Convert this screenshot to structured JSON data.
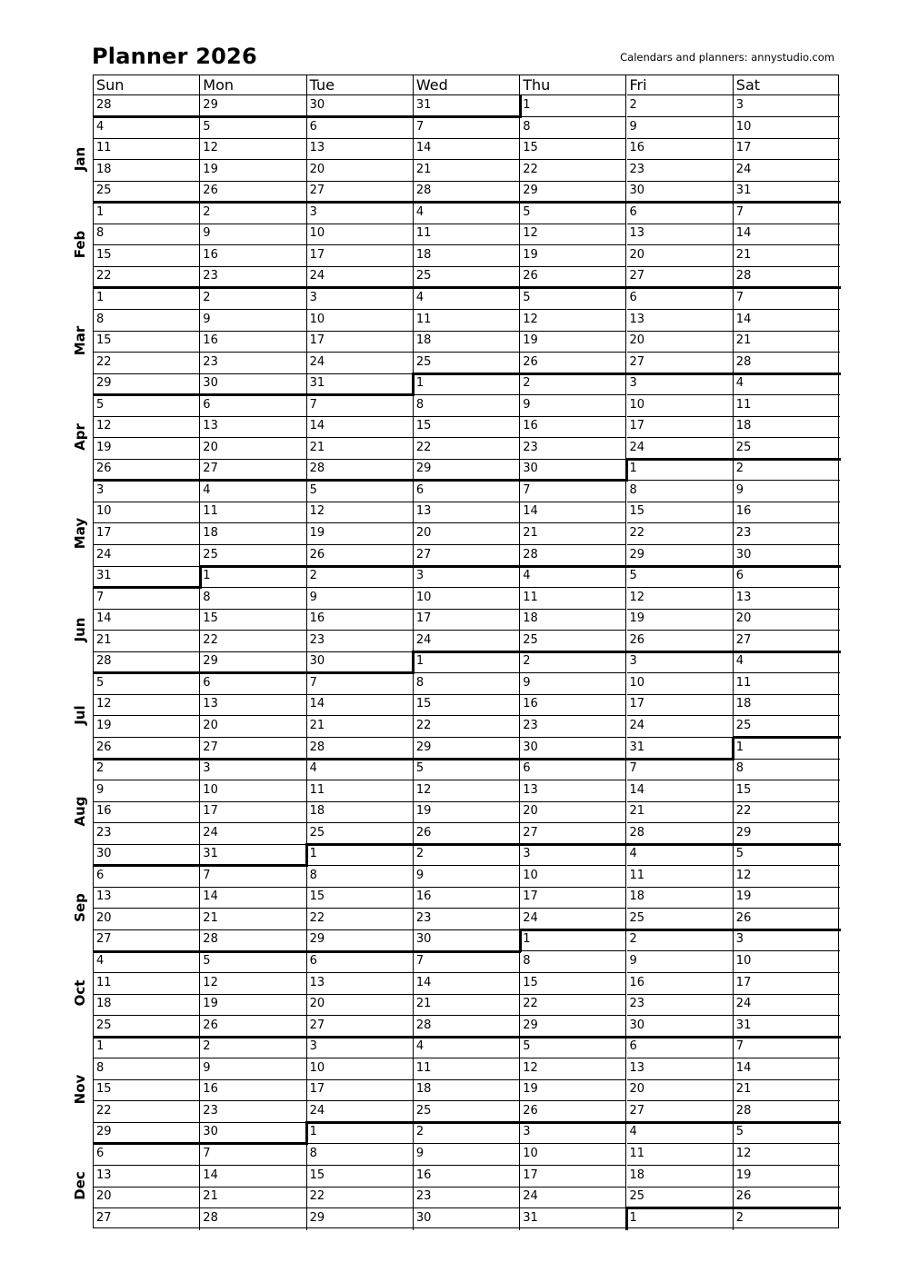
{
  "header": {
    "title": "Planner 2026",
    "credit": "Calendars and planners:  annystudio.com"
  },
  "days": [
    "Sun",
    "Mon",
    "Tue",
    "Wed",
    "Thu",
    "Fri",
    "Sat"
  ],
  "months": [
    "Jan",
    "Feb",
    "Mar",
    "Apr",
    "May",
    "Jun",
    "Jul",
    "Aug",
    "Sep",
    "Oct",
    "Nov",
    "Dec"
  ],
  "weeks": [
    [
      28,
      29,
      30,
      31,
      1,
      2,
      3
    ],
    [
      4,
      5,
      6,
      7,
      8,
      9,
      10
    ],
    [
      11,
      12,
      13,
      14,
      15,
      16,
      17
    ],
    [
      18,
      19,
      20,
      21,
      22,
      23,
      24
    ],
    [
      25,
      26,
      27,
      28,
      29,
      30,
      31
    ],
    [
      1,
      2,
      3,
      4,
      5,
      6,
      7
    ],
    [
      8,
      9,
      10,
      11,
      12,
      13,
      14
    ],
    [
      15,
      16,
      17,
      18,
      19,
      20,
      21
    ],
    [
      22,
      23,
      24,
      25,
      26,
      27,
      28
    ],
    [
      1,
      2,
      3,
      4,
      5,
      6,
      7
    ],
    [
      8,
      9,
      10,
      11,
      12,
      13,
      14
    ],
    [
      15,
      16,
      17,
      18,
      19,
      20,
      21
    ],
    [
      22,
      23,
      24,
      25,
      26,
      27,
      28
    ],
    [
      29,
      30,
      31,
      1,
      2,
      3,
      4
    ],
    [
      5,
      6,
      7,
      8,
      9,
      10,
      11
    ],
    [
      12,
      13,
      14,
      15,
      16,
      17,
      18
    ],
    [
      19,
      20,
      21,
      22,
      23,
      24,
      25
    ],
    [
      26,
      27,
      28,
      29,
      30,
      1,
      2
    ],
    [
      3,
      4,
      5,
      6,
      7,
      8,
      9
    ],
    [
      10,
      11,
      12,
      13,
      14,
      15,
      16
    ],
    [
      17,
      18,
      19,
      20,
      21,
      22,
      23
    ],
    [
      24,
      25,
      26,
      27,
      28,
      29,
      30
    ],
    [
      31,
      1,
      2,
      3,
      4,
      5,
      6
    ],
    [
      7,
      8,
      9,
      10,
      11,
      12,
      13
    ],
    [
      14,
      15,
      16,
      17,
      18,
      19,
      20
    ],
    [
      21,
      22,
      23,
      24,
      25,
      26,
      27
    ],
    [
      28,
      29,
      30,
      1,
      2,
      3,
      4
    ],
    [
      5,
      6,
      7,
      8,
      9,
      10,
      11
    ],
    [
      12,
      13,
      14,
      15,
      16,
      17,
      18
    ],
    [
      19,
      20,
      21,
      22,
      23,
      24,
      25
    ],
    [
      26,
      27,
      28,
      29,
      30,
      31,
      1
    ],
    [
      2,
      3,
      4,
      5,
      6,
      7,
      8
    ],
    [
      9,
      10,
      11,
      12,
      13,
      14,
      15
    ],
    [
      16,
      17,
      18,
      19,
      20,
      21,
      22
    ],
    [
      23,
      24,
      25,
      26,
      27,
      28,
      29
    ],
    [
      30,
      31,
      1,
      2,
      3,
      4,
      5
    ],
    [
      6,
      7,
      8,
      9,
      10,
      11,
      12
    ],
    [
      13,
      14,
      15,
      16,
      17,
      18,
      19
    ],
    [
      20,
      21,
      22,
      23,
      24,
      25,
      26
    ],
    [
      27,
      28,
      29,
      30,
      1,
      2,
      3
    ],
    [
      4,
      5,
      6,
      7,
      8,
      9,
      10
    ],
    [
      11,
      12,
      13,
      14,
      15,
      16,
      17
    ],
    [
      18,
      19,
      20,
      21,
      22,
      23,
      24
    ],
    [
      25,
      26,
      27,
      28,
      29,
      30,
      31
    ],
    [
      1,
      2,
      3,
      4,
      5,
      6,
      7
    ],
    [
      8,
      9,
      10,
      11,
      12,
      13,
      14
    ],
    [
      15,
      16,
      17,
      18,
      19,
      20,
      21
    ],
    [
      22,
      23,
      24,
      25,
      26,
      27,
      28
    ],
    [
      29,
      30,
      1,
      2,
      3,
      4,
      5
    ],
    [
      6,
      7,
      8,
      9,
      10,
      11,
      12
    ],
    [
      13,
      14,
      15,
      16,
      17,
      18,
      19
    ],
    [
      20,
      21,
      22,
      23,
      24,
      25,
      26
    ],
    [
      27,
      28,
      29,
      30,
      31,
      1,
      2
    ]
  ]
}
